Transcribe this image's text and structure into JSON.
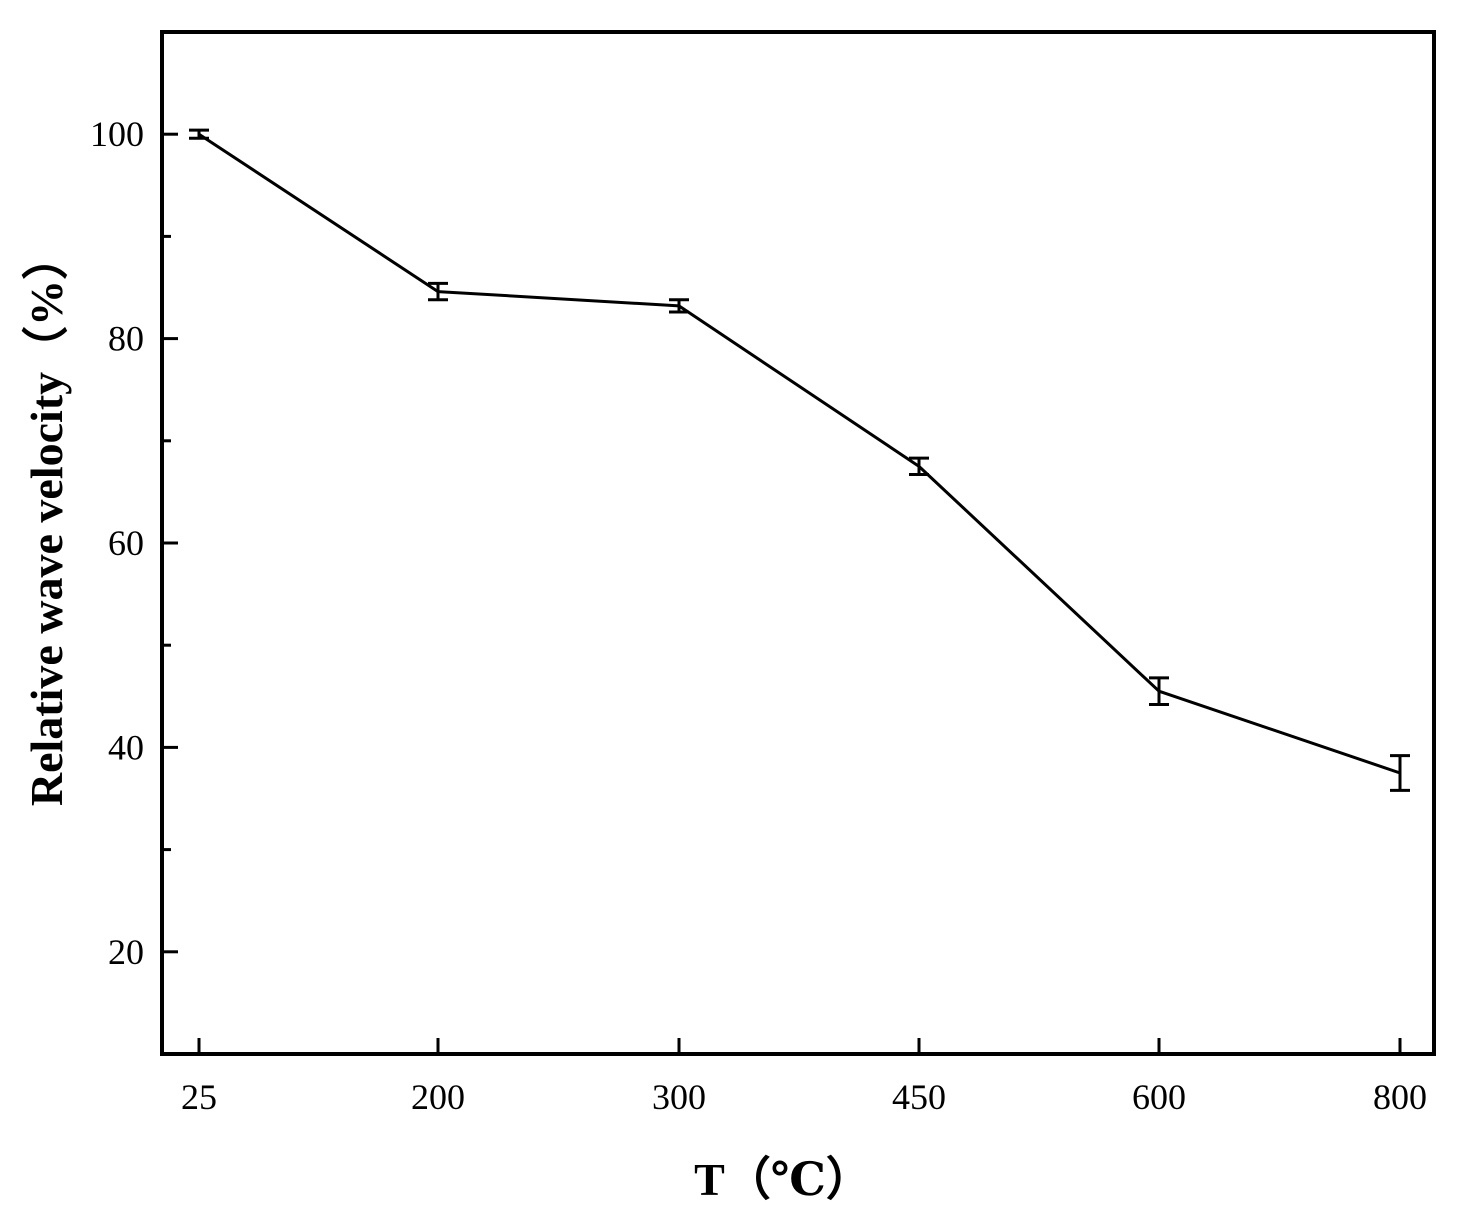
{
  "chart_data": {
    "type": "line",
    "categories": [
      "25",
      "200",
      "300",
      "450",
      "600",
      "800"
    ],
    "series": [
      {
        "values": [
          100,
          84.6,
          83.2,
          67.5,
          45.5,
          37.5
        ],
        "errors": [
          0.4,
          0.8,
          0.6,
          0.8,
          1.3,
          1.7
        ]
      }
    ],
    "xlabel": "T（℃）",
    "ylabel": "Relative wave velocity（%）",
    "ylim": [
      10,
      110
    ],
    "y_major_ticks": [
      20,
      40,
      60,
      80,
      100
    ],
    "y_minor_ticks": [
      30,
      50,
      70,
      90
    ],
    "grid": false,
    "legend": "none",
    "colors": {
      "line": "#000000",
      "axis": "#000000",
      "background": "#ffffff"
    }
  }
}
